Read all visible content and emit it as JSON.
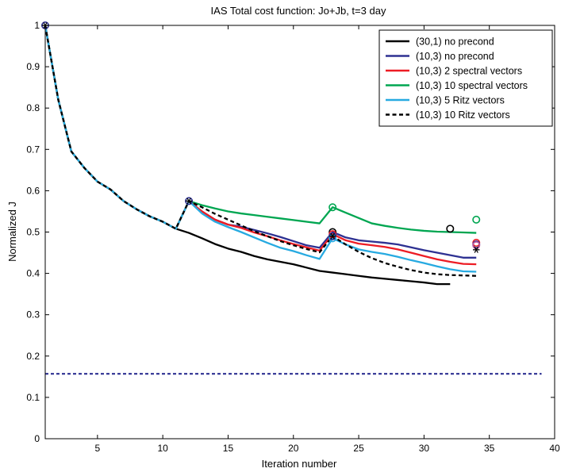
{
  "chart_data": {
    "type": "line",
    "title": "IAS Total cost function: Jo+Jb, t=3 day",
    "xlabel": "Iteration number",
    "ylabel": "Normalized J",
    "xlim": [
      1,
      40
    ],
    "ylim": [
      0,
      1
    ],
    "xticks": [
      5,
      10,
      15,
      20,
      25,
      30,
      35,
      40
    ],
    "yticks": [
      0,
      0.1,
      0.2,
      0.3,
      0.4,
      0.5,
      0.6,
      0.7,
      0.8,
      0.9,
      1
    ],
    "grid": false,
    "legend_position": "top-right",
    "series": [
      {
        "name": "(30,1) no precond",
        "color": "#000000",
        "dash": "solid",
        "x": [
          1,
          2,
          3,
          4,
          5,
          6,
          7,
          8,
          9,
          10,
          11,
          12,
          13,
          14,
          15,
          16,
          17,
          18,
          19,
          20,
          21,
          22,
          23,
          24,
          25,
          26,
          27,
          28,
          29,
          30,
          31,
          32
        ],
        "y": [
          1.0,
          0.82,
          0.695,
          0.655,
          0.622,
          0.603,
          0.575,
          0.555,
          0.538,
          0.525,
          0.508,
          0.498,
          0.485,
          0.471,
          0.46,
          0.452,
          0.442,
          0.434,
          0.428,
          0.422,
          0.414,
          0.406,
          0.402,
          0.398,
          0.394,
          0.39,
          0.387,
          0.384,
          0.381,
          0.378,
          0.374,
          0.374
        ]
      },
      {
        "name": "(10,3) no precond",
        "color": "#2e3192",
        "dash": "solid",
        "x": [
          1,
          2,
          3,
          4,
          5,
          6,
          7,
          8,
          9,
          10,
          11,
          12,
          13,
          14,
          15,
          16,
          17,
          18,
          19,
          20,
          21,
          22,
          23,
          24,
          25,
          26,
          27,
          28,
          29,
          30,
          31,
          32,
          33,
          34
        ],
        "y": [
          1.0,
          0.82,
          0.695,
          0.655,
          0.622,
          0.603,
          0.575,
          0.555,
          0.538,
          0.525,
          0.508,
          0.575,
          0.55,
          0.53,
          0.518,
          0.513,
          0.505,
          0.497,
          0.488,
          0.478,
          0.468,
          0.462,
          0.5,
          0.487,
          0.48,
          0.477,
          0.474,
          0.47,
          0.463,
          0.456,
          0.45,
          0.444,
          0.438,
          0.438
        ]
      },
      {
        "name": "(10,3) 2 spectral vectors",
        "color": "#ed1c24",
        "dash": "solid",
        "x": [
          1,
          2,
          3,
          4,
          5,
          6,
          7,
          8,
          9,
          10,
          11,
          12,
          13,
          14,
          15,
          16,
          17,
          18,
          19,
          20,
          21,
          22,
          23,
          24,
          25,
          26,
          27,
          28,
          29,
          30,
          31,
          32,
          33,
          34
        ],
        "y": [
          1.0,
          0.82,
          0.695,
          0.655,
          0.622,
          0.603,
          0.575,
          0.555,
          0.538,
          0.525,
          0.508,
          0.575,
          0.55,
          0.53,
          0.518,
          0.51,
          0.499,
          0.49,
          0.48,
          0.471,
          0.463,
          0.455,
          0.495,
          0.48,
          0.472,
          0.468,
          0.464,
          0.458,
          0.45,
          0.442,
          0.434,
          0.428,
          0.423,
          0.422
        ]
      },
      {
        "name": "(10,3) 10 spectral vectors",
        "color": "#00a651",
        "dash": "solid",
        "x": [
          1,
          2,
          3,
          4,
          5,
          6,
          7,
          8,
          9,
          10,
          11,
          12,
          13,
          14,
          15,
          16,
          17,
          18,
          19,
          20,
          21,
          22,
          23,
          24,
          25,
          26,
          27,
          28,
          29,
          30,
          31,
          32,
          33,
          34
        ],
        "y": [
          1.0,
          0.82,
          0.695,
          0.655,
          0.622,
          0.603,
          0.575,
          0.555,
          0.538,
          0.525,
          0.508,
          0.575,
          0.565,
          0.557,
          0.55,
          0.545,
          0.541,
          0.537,
          0.533,
          0.529,
          0.525,
          0.521,
          0.56,
          0.547,
          0.534,
          0.521,
          0.515,
          0.51,
          0.506,
          0.503,
          0.501,
          0.5,
          0.499,
          0.498
        ]
      },
      {
        "name": "(10,3) 5 Ritz vectors",
        "color": "#27aae1",
        "dash": "solid",
        "x": [
          1,
          2,
          3,
          4,
          5,
          6,
          7,
          8,
          9,
          10,
          11,
          12,
          13,
          14,
          15,
          16,
          17,
          18,
          19,
          20,
          21,
          22,
          23,
          24,
          25,
          26,
          27,
          28,
          29,
          30,
          31,
          32,
          33,
          34
        ],
        "y": [
          1.0,
          0.82,
          0.695,
          0.655,
          0.622,
          0.603,
          0.575,
          0.555,
          0.538,
          0.525,
          0.508,
          0.575,
          0.545,
          0.525,
          0.512,
          0.5,
          0.487,
          0.474,
          0.462,
          0.454,
          0.444,
          0.435,
          0.485,
          0.47,
          0.458,
          0.452,
          0.447,
          0.44,
          0.432,
          0.425,
          0.417,
          0.41,
          0.405,
          0.404
        ]
      },
      {
        "name": "(10,3) 10 Ritz vectors",
        "color": "#000000",
        "dash": "dashed",
        "x": [
          1,
          2,
          3,
          4,
          5,
          6,
          7,
          8,
          9,
          10,
          11,
          12,
          13,
          14,
          15,
          16,
          17,
          18,
          19,
          20,
          21,
          22,
          23,
          24,
          25,
          26,
          27,
          28,
          29,
          30,
          31,
          32,
          33,
          34
        ],
        "y": [
          1.0,
          0.82,
          0.695,
          0.655,
          0.622,
          0.603,
          0.575,
          0.555,
          0.538,
          0.525,
          0.508,
          0.575,
          0.56,
          0.544,
          0.53,
          0.516,
          0.502,
          0.49,
          0.478,
          0.468,
          0.459,
          0.451,
          0.49,
          0.47,
          0.452,
          0.437,
          0.425,
          0.416,
          0.408,
          0.402,
          0.398,
          0.396,
          0.395,
          0.394
        ]
      }
    ],
    "reference_line": {
      "y": 0.157,
      "color": "#2e3192",
      "dash": "dashed",
      "x_range": [
        1,
        39
      ]
    },
    "markers": [
      {
        "x": 1,
        "y": 1.0,
        "symbol": "circle",
        "color": "#2e3192"
      },
      {
        "x": 1,
        "y": 1.0,
        "symbol": "star",
        "color": "#000000"
      },
      {
        "x": 12,
        "y": 0.575,
        "symbol": "circle",
        "color": "#2e3192"
      },
      {
        "x": 12,
        "y": 0.575,
        "symbol": "star",
        "color": "#000000"
      },
      {
        "x": 23,
        "y": 0.56,
        "symbol": "circle",
        "color": "#00a651"
      },
      {
        "x": 23,
        "y": 0.5,
        "symbol": "circle",
        "color": "#000000"
      },
      {
        "x": 23,
        "y": 0.495,
        "symbol": "circle",
        "color": "#ed1c24"
      },
      {
        "x": 23,
        "y": 0.49,
        "symbol": "circle",
        "color": "#2e3192"
      },
      {
        "x": 23,
        "y": 0.485,
        "symbol": "circle",
        "color": "#27aae1"
      },
      {
        "x": 23,
        "y": 0.49,
        "symbol": "star",
        "color": "#000000"
      },
      {
        "x": 32,
        "y": 0.508,
        "symbol": "circle",
        "color": "#000000"
      },
      {
        "x": 34,
        "y": 0.53,
        "symbol": "circle",
        "color": "#00a651"
      },
      {
        "x": 34,
        "y": 0.474,
        "symbol": "circle",
        "color": "#ed1c24"
      },
      {
        "x": 34,
        "y": 0.47,
        "symbol": "circle",
        "color": "#2e3192"
      },
      {
        "x": 34,
        "y": 0.468,
        "symbol": "circle",
        "color": "#c2569b"
      },
      {
        "x": 34,
        "y": 0.457,
        "symbol": "star",
        "color": "#000000"
      }
    ]
  }
}
